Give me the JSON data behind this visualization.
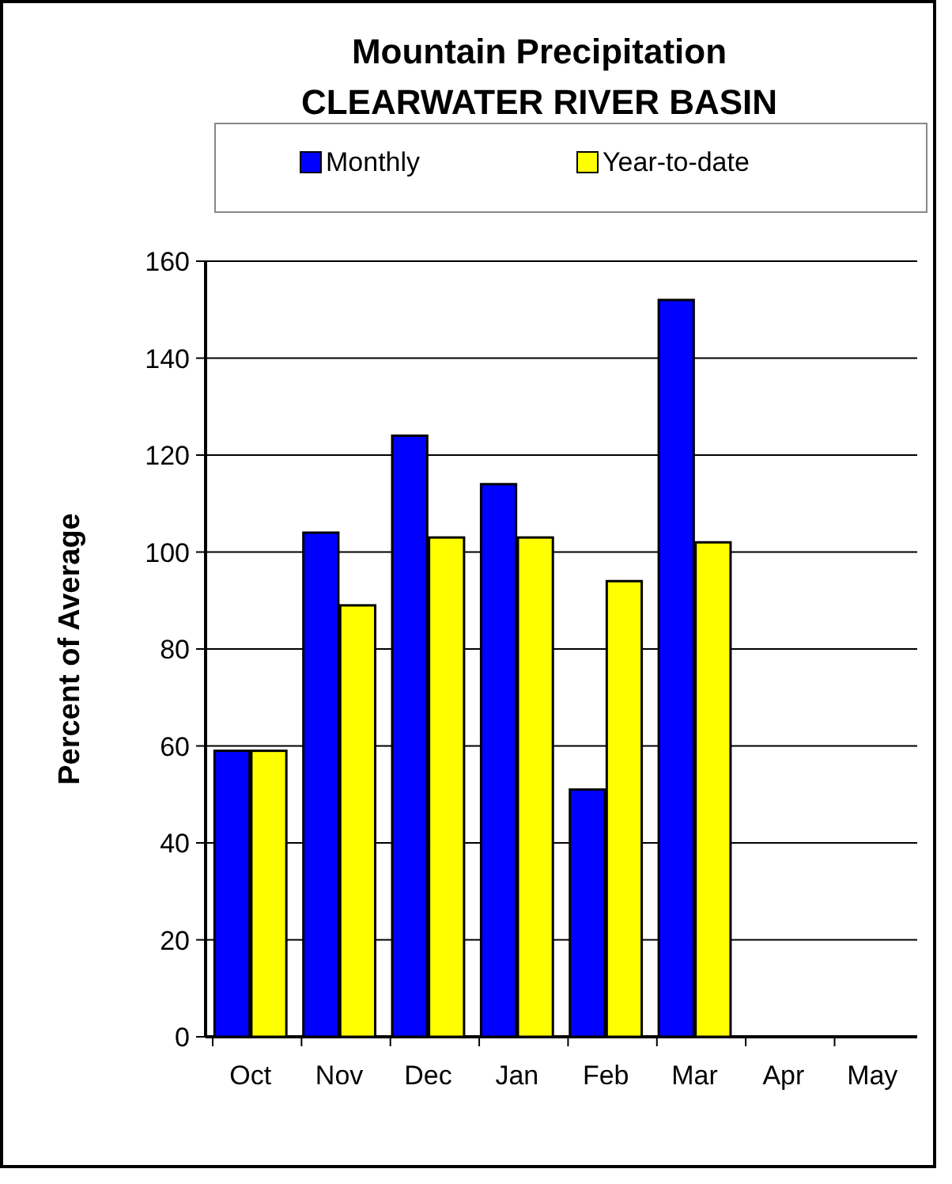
{
  "chart_data": {
    "type": "bar",
    "title": "Mountain Precipitation\nCLEARWATER RIVER BASIN",
    "ylabel": "Percent of Average",
    "categories": [
      "Oct",
      "Nov",
      "Dec",
      "Jan",
      "Feb",
      "Mar",
      "Apr",
      "May"
    ],
    "series": [
      {
        "name": "Monthly",
        "color": "#0000ff",
        "values": [
          59,
          104,
          124,
          114,
          51,
          152,
          null,
          null
        ]
      },
      {
        "name": "Year-to-date",
        "color": "#ffff00",
        "values": [
          59,
          89,
          103,
          103,
          94,
          102,
          null,
          null
        ]
      }
    ],
    "ylim": [
      0,
      160
    ],
    "yticks": [
      0,
      20,
      40,
      60,
      80,
      100,
      120,
      140,
      160
    ],
    "grid": "y",
    "legend": "top"
  }
}
